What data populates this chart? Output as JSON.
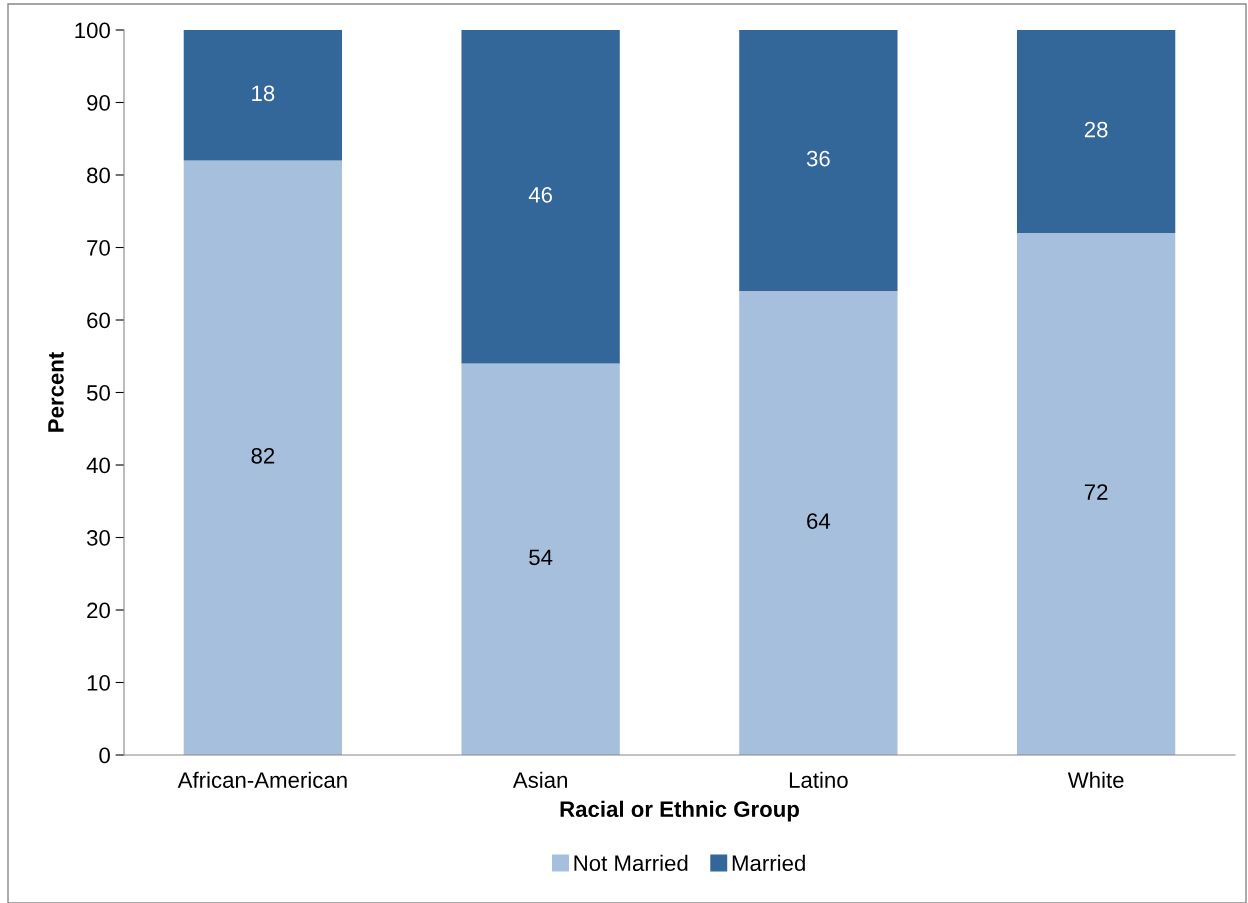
{
  "chart_data": {
    "type": "bar",
    "stacked": true,
    "xlabel": "Racial or Ethnic Group",
    "ylabel": "Percent",
    "categories": [
      "African-American",
      "Asian",
      "Latino",
      "White"
    ],
    "series": [
      {
        "name": "Not Married",
        "color": "#a5bfdd",
        "values": [
          82,
          54,
          64,
          72
        ]
      },
      {
        "name": "Married",
        "color": "#336699",
        "values": [
          18,
          46,
          36,
          28
        ]
      }
    ],
    "ylim": [
      0,
      100
    ],
    "yticks": [
      0,
      10,
      20,
      30,
      40,
      50,
      60,
      70,
      80,
      90,
      100
    ],
    "data_labels": true,
    "legend": "bottom",
    "grid": false
  }
}
